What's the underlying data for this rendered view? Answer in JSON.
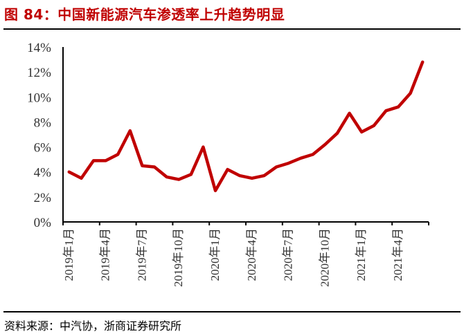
{
  "title": "图 84：中国新能源汽车渗透率上升趋势明显",
  "source": "资料来源：中汽协，浙商证券研究所",
  "colors": {
    "title": "#c00000",
    "line": "#c00000",
    "axis": "#000000",
    "tick_text": "#333333"
  },
  "chart_data": {
    "type": "line",
    "title": "中国新能源汽车渗透率上升趋势明显",
    "xlabel": "",
    "ylabel": "",
    "ylim": [
      0,
      14
    ],
    "yticks": [
      "0%",
      "2%",
      "4%",
      "6%",
      "8%",
      "10%",
      "12%",
      "14%"
    ],
    "xtick_labels": [
      "2019年1月",
      "2019年4月",
      "2019年7月",
      "2019年10月",
      "2020年1月",
      "2020年4月",
      "2020年7月",
      "2020年10月",
      "2021年1月",
      "2021年4月"
    ],
    "grid": false,
    "legend": null,
    "x": [
      "2019-01",
      "2019-02",
      "2019-03",
      "2019-04",
      "2019-05",
      "2019-06",
      "2019-07",
      "2019-08",
      "2019-09",
      "2019-10",
      "2019-11",
      "2019-12",
      "2020-01",
      "2020-02",
      "2020-03",
      "2020-04",
      "2020-05",
      "2020-06",
      "2020-07",
      "2020-08",
      "2020-09",
      "2020-10",
      "2020-11",
      "2020-12",
      "2021-01",
      "2021-02",
      "2021-03",
      "2021-04",
      "2021-05",
      "2021-06"
    ],
    "series": [
      {
        "name": "新能源汽车渗透率",
        "unit": "%",
        "values": [
          4.0,
          3.5,
          4.9,
          4.9,
          5.4,
          7.3,
          4.5,
          4.4,
          3.6,
          3.4,
          3.8,
          6.0,
          2.5,
          4.2,
          3.7,
          3.5,
          3.7,
          4.4,
          4.7,
          5.1,
          5.4,
          6.2,
          7.1,
          8.7,
          7.2,
          7.7,
          8.9,
          9.2,
          10.3,
          12.8
        ]
      }
    ]
  }
}
